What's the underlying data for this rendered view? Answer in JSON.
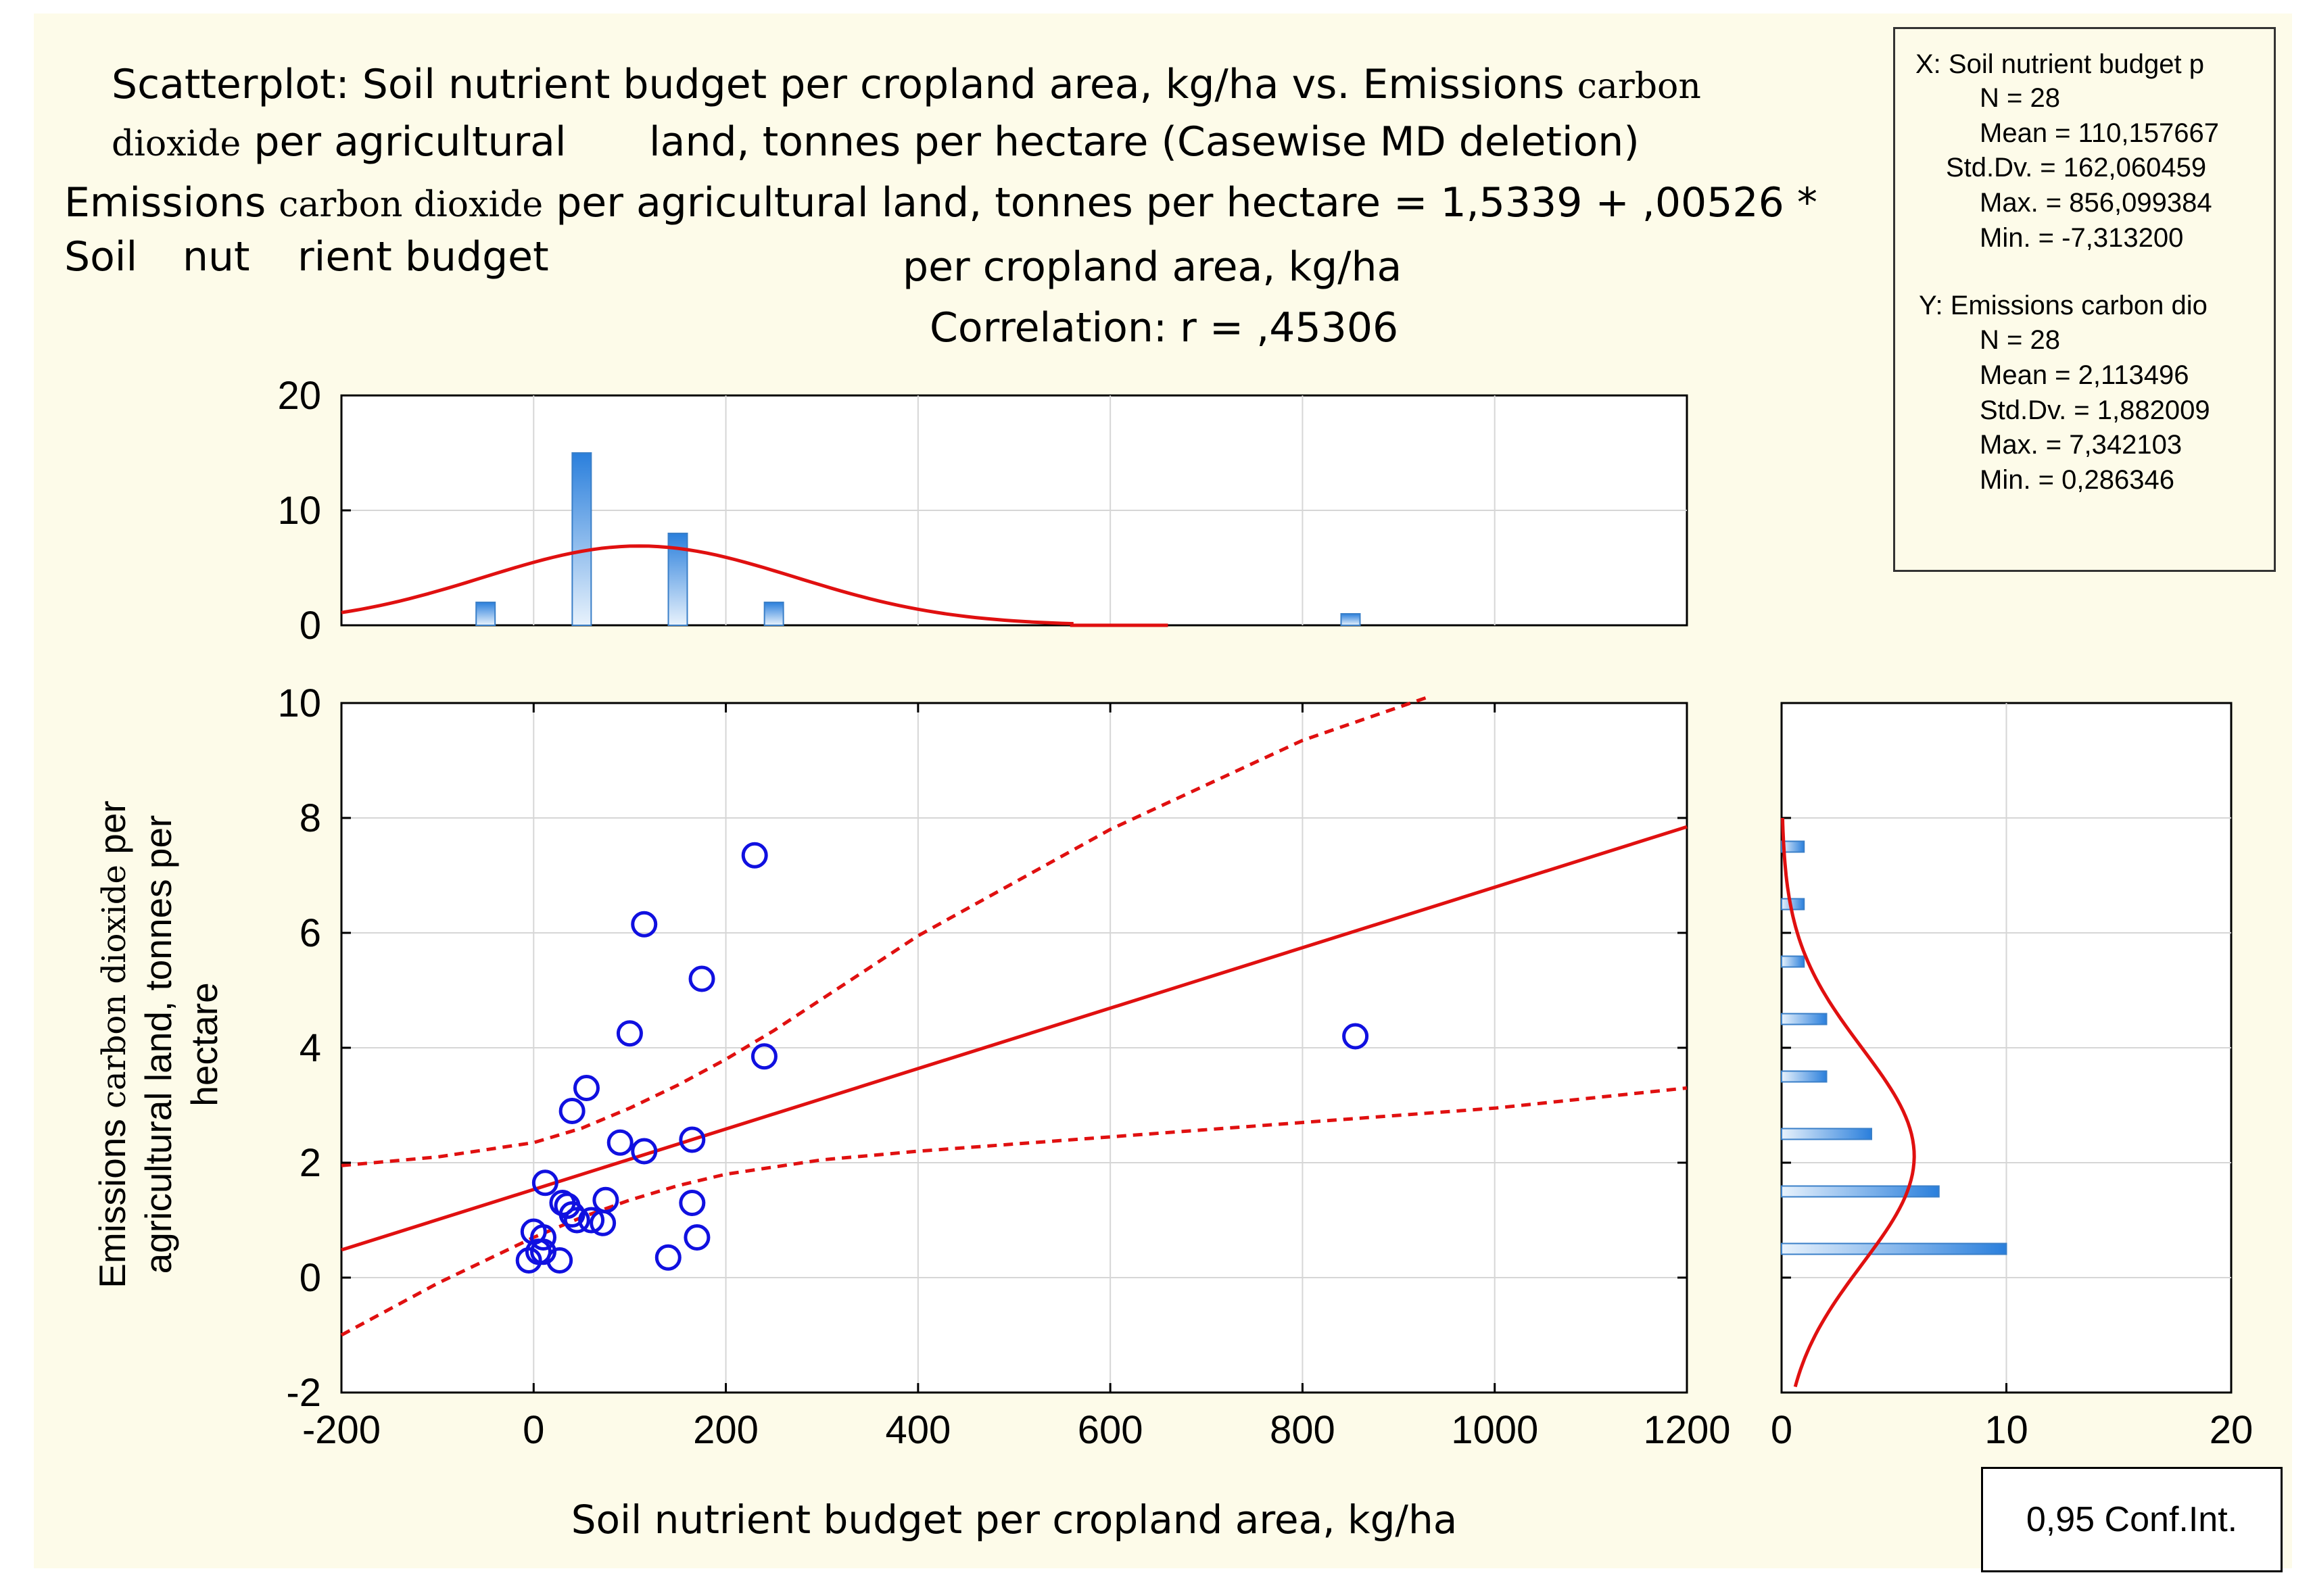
{
  "title": {
    "line1a": "Scatterplot: Soil nutrient budget per cropland area, kg/ha vs. Emissions",
    "line1b": "carbon",
    "line2a": "dioxide",
    "line2b": "per agricultural",
    "line2c": "land, tonnes per hectare (Casewise MD deletion)",
    "eq_a": "Emissions",
    "eq_b": "carbon dioxide",
    "eq_c": "per agricultural land, tonnes per hectare = 1,5339 + ,00526 *",
    "eq_d1": "Soil",
    "eq_d2": "nut",
    "eq_d3": "rient budget",
    "eq_e": "per cropland area, kg/ha",
    "corr": "Correlation: r = ,45306"
  },
  "stats": {
    "x_label": "X:  Soil nutrient budget p",
    "x_n": "N = 28",
    "x_mean": "Mean = 110,157667",
    "x_sd": "Std.Dv. = 162,060459",
    "x_max": "Max. = 856,099384",
    "x_min": "Min. = -7,313200",
    "y_label": "Y:  Emissions carbon dio",
    "y_n": "N = 28",
    "y_mean": "Mean = 2,113496",
    "y_sd": "Std.Dv. = 1,882009",
    "y_max": "Max. = 7,342103",
    "y_min": "Min. = 0,286346"
  },
  "conf_label": "0,95 Conf.Int.",
  "colors": {
    "background": "#fdfbe9",
    "plot_bg": "#ffffff",
    "point": "#1010e0",
    "fit_line": "#e01010",
    "bar_dark": "#2a7fdc",
    "bar_light": "#e8f2fc"
  },
  "chart_data": [
    {
      "type": "scatter",
      "xlabel": "Soil nutrient budget per cropland area, kg/ha",
      "ylabel_a": "Emissions",
      "ylabel_b": "carbon dioxide",
      "ylabel_c": "per",
      "ylabel_d": "agricultural land, tonnes per",
      "ylabel_e": "hectare",
      "xlim": [
        -200,
        1200
      ],
      "ylim": [
        -2,
        10
      ],
      "xticks": [
        -200,
        0,
        200,
        400,
        600,
        800,
        1000,
        1200
      ],
      "xtick_labels": [
        "-200",
        "0",
        "200",
        "400",
        "600",
        "800",
        "1000",
        "1200"
      ],
      "yticks": [
        -2,
        0,
        2,
        4,
        6,
        8,
        10
      ],
      "ytick_labels": [
        "-2",
        "0",
        "2",
        "4",
        "6",
        "8",
        "10"
      ],
      "points": [
        [
          230,
          7.35
        ],
        [
          115,
          6.15
        ],
        [
          175,
          5.2
        ],
        [
          100,
          4.25
        ],
        [
          240,
          3.85
        ],
        [
          855,
          4.2
        ],
        [
          55,
          3.3
        ],
        [
          40,
          2.9
        ],
        [
          90,
          2.35
        ],
        [
          165,
          2.4
        ],
        [
          115,
          2.2
        ],
        [
          12,
          1.65
        ],
        [
          75,
          1.35
        ],
        [
          30,
          1.3
        ],
        [
          35,
          1.25
        ],
        [
          165,
          1.3
        ],
        [
          40,
          1.1
        ],
        [
          45,
          1.0
        ],
        [
          60,
          1.0
        ],
        [
          72,
          0.95
        ],
        [
          0,
          0.8
        ],
        [
          10,
          0.7
        ],
        [
          170,
          0.7
        ],
        [
          5,
          0.45
        ],
        [
          10,
          0.45
        ],
        [
          -5,
          0.3
        ],
        [
          27,
          0.3
        ],
        [
          140,
          0.35
        ]
      ],
      "regression": {
        "intercept": 1.5339,
        "slope": 0.00526
      },
      "ci_upper": [
        [
          -200,
          1.95
        ],
        [
          -100,
          2.1
        ],
        [
          0,
          2.35
        ],
        [
          50,
          2.6
        ],
        [
          100,
          2.95
        ],
        [
          150,
          3.35
        ],
        [
          200,
          3.8
        ],
        [
          250,
          4.3
        ],
        [
          300,
          4.85
        ],
        [
          400,
          5.95
        ],
        [
          600,
          7.8
        ],
        [
          800,
          9.35
        ],
        [
          930,
          10.1
        ]
      ],
      "ci_lower": [
        [
          -200,
          -1.0
        ],
        [
          -100,
          -0.1
        ],
        [
          0,
          0.7
        ],
        [
          50,
          1.05
        ],
        [
          100,
          1.35
        ],
        [
          150,
          1.6
        ],
        [
          200,
          1.8
        ],
        [
          300,
          2.05
        ],
        [
          400,
          2.2
        ],
        [
          600,
          2.45
        ],
        [
          800,
          2.7
        ],
        [
          1000,
          2.95
        ],
        [
          1200,
          3.3
        ]
      ]
    },
    {
      "type": "bar",
      "orientation": "vertical",
      "role": "x-marginal-histogram",
      "ylim": [
        0,
        20
      ],
      "yticks": [
        0,
        10,
        20
      ],
      "ytick_labels": [
        "0",
        "10",
        "20"
      ],
      "bins": [
        -50,
        50,
        150,
        250,
        850
      ],
      "values": [
        2,
        15,
        8,
        2,
        1
      ],
      "normal_fit": {
        "mean": 110.157667,
        "sd": 162.060459,
        "peak": 6.9
      }
    },
    {
      "type": "bar",
      "orientation": "horizontal",
      "role": "y-marginal-histogram",
      "xlim": [
        0,
        20
      ],
      "xticks": [
        0,
        10,
        20
      ],
      "xtick_labels": [
        "0",
        "10",
        "20"
      ],
      "bins": [
        0.5,
        1.5,
        2.5,
        3.5,
        4.5,
        5.5,
        6.5,
        7.5
      ],
      "values": [
        10,
        7,
        4,
        2,
        2,
        1,
        1,
        1
      ],
      "normal_fit": {
        "mean": 2.113496,
        "sd": 1.882009,
        "peak": 5.9
      }
    }
  ]
}
